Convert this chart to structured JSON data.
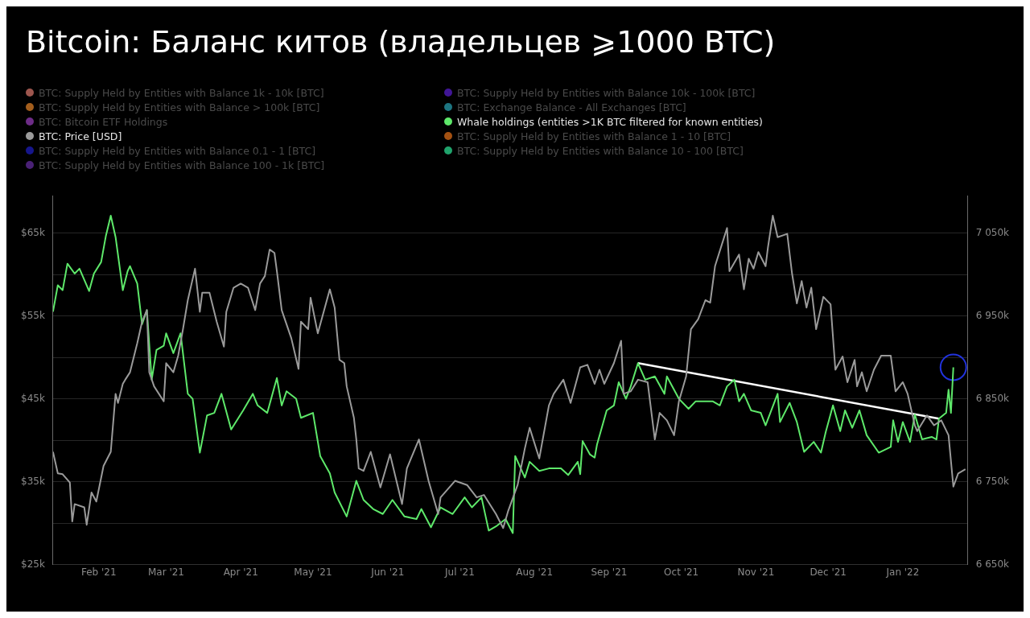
{
  "chart_data": {
    "type": "line",
    "title": "Bitcoin: Баланс китов (владельцев ⩾1000 BTC)",
    "xlim": [
      "2021-01-13",
      "2022-01-28"
    ],
    "xticks": [
      {
        "value": "2021-02-01",
        "label": "Feb '21"
      },
      {
        "value": "2021-03-01",
        "label": "Mar '21"
      },
      {
        "value": "2021-04-01",
        "label": "Apr '21"
      },
      {
        "value": "2021-05-01",
        "label": "May '21"
      },
      {
        "value": "2021-06-01",
        "label": "Jun '21"
      },
      {
        "value": "2021-07-01",
        "label": "Jul '21"
      },
      {
        "value": "2021-08-01",
        "label": "Aug '21"
      },
      {
        "value": "2021-09-01",
        "label": "Sep '21"
      },
      {
        "value": "2021-10-01",
        "label": "Oct '21"
      },
      {
        "value": "2021-11-01",
        "label": "Nov '21"
      },
      {
        "value": "2021-12-01",
        "label": "Dec '21"
      },
      {
        "value": "2022-01-01",
        "label": "Jan '22"
      }
    ],
    "ylim": [
      25000,
      69500
    ],
    "yticks": [
      {
        "value": 25000,
        "label": "$25k"
      },
      {
        "value": 30000,
        "label": null
      },
      {
        "value": 35000,
        "label": "$35k"
      },
      {
        "value": 40000,
        "label": null
      },
      {
        "value": 45000,
        "label": "$45k"
      },
      {
        "value": 50000,
        "label": null
      },
      {
        "value": 55000,
        "label": "$55k"
      },
      {
        "value": 60000,
        "label": null
      },
      {
        "value": 65000,
        "label": "$65k"
      }
    ],
    "y2lim": [
      6650000,
      7095000
    ],
    "y2ticks": [
      {
        "value": 6650000,
        "label": "6 650k"
      },
      {
        "value": 6700000,
        "label": null
      },
      {
        "value": 6750000,
        "label": "6 750k"
      },
      {
        "value": 6800000,
        "label": null
      },
      {
        "value": 6850000,
        "label": "6 850k"
      },
      {
        "value": 6900000,
        "label": null
      },
      {
        "value": 6950000,
        "label": "6 950k"
      },
      {
        "value": 7000000,
        "label": null
      },
      {
        "value": 7050000,
        "label": "7 050k"
      }
    ],
    "grid": "y",
    "legend": "top left",
    "marker": "none",
    "line_style": "solid",
    "series": [
      {
        "name": "BTC: Supply Held by Entities with Balance 1k - 10k [BTC]",
        "color": "#e07a6f"
      },
      {
        "name": "BTC: Supply Held by Entities with Balance > 100k [BTC]",
        "color": "#e8862a"
      },
      {
        "name": "BTC: Bitcoin ETF Holdings",
        "color": "#9b3fc0"
      },
      {
        "name": "BTC: Price [USD]",
        "color": "#9a9a9a",
        "x": [
          "2021-01-13",
          "2021-01-15",
          "2021-01-17",
          "2021-01-20",
          "2021-01-21",
          "2021-01-22",
          "2021-01-26",
          "2021-01-27",
          "2021-01-29",
          "2021-01-31",
          "2021-02-03",
          "2021-02-06",
          "2021-02-08",
          "2021-02-09",
          "2021-02-11",
          "2021-02-12",
          "2021-02-14",
          "2021-02-17",
          "2021-02-19",
          "2021-02-21",
          "2021-02-22",
          "2021-02-24",
          "2021-02-28",
          "2021-03-01",
          "2021-03-04",
          "2021-03-06",
          "2021-03-08",
          "2021-03-10",
          "2021-03-13",
          "2021-03-15",
          "2021-03-16",
          "2021-03-19",
          "2021-03-22",
          "2021-03-25",
          "2021-03-26",
          "2021-03-29",
          "2021-04-01",
          "2021-04-04",
          "2021-04-07",
          "2021-04-09",
          "2021-04-11",
          "2021-04-13",
          "2021-04-15",
          "2021-04-16",
          "2021-04-18",
          "2021-04-22",
          "2021-04-25",
          "2021-04-26",
          "2021-04-29",
          "2021-04-30",
          "2021-05-03",
          "2021-05-08",
          "2021-05-10",
          "2021-05-12",
          "2021-05-14",
          "2021-05-15",
          "2021-05-18",
          "2021-05-19",
          "2021-05-20",
          "2021-05-22",
          "2021-05-25",
          "2021-05-29",
          "2021-06-02",
          "2021-06-07",
          "2021-06-09",
          "2021-06-14",
          "2021-06-18",
          "2021-06-22",
          "2021-06-23",
          "2021-06-29",
          "2021-07-04",
          "2021-07-08",
          "2021-07-11",
          "2021-07-16",
          "2021-07-19",
          "2021-07-21",
          "2021-07-25",
          "2021-07-28",
          "2021-07-30",
          "2021-08-03",
          "2021-08-07",
          "2021-08-09",
          "2021-08-13",
          "2021-08-16",
          "2021-08-20",
          "2021-08-23",
          "2021-08-26",
          "2021-08-28",
          "2021-08-30",
          "2021-09-03",
          "2021-09-06",
          "2021-09-07",
          "2021-09-10",
          "2021-09-13",
          "2021-09-17",
          "2021-09-20",
          "2021-09-22",
          "2021-09-25",
          "2021-09-28",
          "2021-09-30",
          "2021-10-03",
          "2021-10-05",
          "2021-10-08",
          "2021-10-11",
          "2021-10-13",
          "2021-10-15",
          "2021-10-20",
          "2021-10-21",
          "2021-10-25",
          "2021-10-27",
          "2021-10-29",
          "2021-10-31",
          "2021-11-02",
          "2021-11-05",
          "2021-11-06",
          "2021-11-08",
          "2021-11-10",
          "2021-11-14",
          "2021-11-16",
          "2021-11-18",
          "2021-11-20",
          "2021-11-22",
          "2021-11-24",
          "2021-11-26",
          "2021-11-29",
          "2021-12-02",
          "2021-12-04",
          "2021-12-07",
          "2021-12-09",
          "2021-12-12",
          "2021-12-13",
          "2021-12-15",
          "2021-12-17",
          "2021-12-20",
          "2021-12-23",
          "2021-12-27",
          "2021-12-29",
          "2022-01-01",
          "2022-01-03",
          "2022-01-06",
          "2022-01-07",
          "2022-01-11",
          "2022-01-14",
          "2022-01-17",
          "2022-01-20",
          "2022-01-22",
          "2022-01-24",
          "2022-01-27"
        ],
        "values": [
          38600,
          36000,
          35900,
          34900,
          30200,
          32300,
          31900,
          29800,
          33700,
          32600,
          36900,
          38600,
          45600,
          44500,
          46800,
          47300,
          48200,
          51700,
          54300,
          55700,
          48200,
          46500,
          44700,
          49300,
          48200,
          50200,
          53400,
          56900,
          60700,
          55500,
          57800,
          57800,
          54300,
          51300,
          55500,
          58400,
          58900,
          58400,
          55700,
          58900,
          59800,
          63000,
          62600,
          60400,
          55700,
          52300,
          48600,
          54300,
          53400,
          57200,
          52900,
          58200,
          56000,
          49700,
          49300,
          46500,
          42700,
          40100,
          36600,
          36300,
          38600,
          34300,
          38300,
          32300,
          36600,
          40100,
          35100,
          31100,
          33100,
          35100,
          34600,
          33100,
          33400,
          31100,
          29400,
          31400,
          34600,
          39000,
          41500,
          37800,
          44200,
          45600,
          47300,
          44500,
          48800,
          49100,
          46800,
          48500,
          46800,
          49300,
          52000,
          45600,
          45900,
          47300,
          47000,
          40100,
          43300,
          42400,
          40600,
          44700,
          47700,
          53400,
          54600,
          56900,
          56600,
          61000,
          65600,
          60400,
          62400,
          58200,
          61900,
          60700,
          62700,
          61000,
          63300,
          67100,
          64500,
          64900,
          60100,
          56500,
          59200,
          56000,
          58400,
          53400,
          57300,
          56400,
          48500,
          50100,
          47000,
          49700,
          46500,
          48200,
          45900,
          48500,
          50200,
          50200,
          45900,
          47000,
          45600,
          41800,
          41100,
          43000,
          41800,
          42400,
          40600,
          34400,
          36000,
          36500
        ]
      },
      {
        "name": "BTC: Supply Held by Entities with Balance 0.1 - 1 [BTC]",
        "color": "#1f1fc8"
      },
      {
        "name": "BTC: Supply Held by Entities with Balance 100 - 1k [BTC]",
        "color": "#6a2fa8"
      },
      {
        "name": "BTC: Supply Held by Entities with Balance 10k - 100k [BTC]",
        "color": "#5b1fd6"
      },
      {
        "name": "BTC: Exchange Balance - All Exchanges [BTC]",
        "color": "#2aa7b8"
      },
      {
        "name": "Whale holdings (entities >1K BTC filtered for known entities)",
        "color": "#5ee86a",
        "axis": "y2",
        "x": [
          "2021-01-13",
          "2021-01-15",
          "2021-01-17",
          "2021-01-19",
          "2021-01-22",
          "2021-01-24",
          "2021-01-28",
          "2021-01-30",
          "2021-02-02",
          "2021-02-04",
          "2021-02-06",
          "2021-02-08",
          "2021-02-11",
          "2021-02-13",
          "2021-02-14",
          "2021-02-17",
          "2021-02-19",
          "2021-02-21",
          "2021-02-23",
          "2021-02-25",
          "2021-02-28",
          "2021-03-01",
          "2021-03-04",
          "2021-03-07",
          "2021-03-10",
          "2021-03-12",
          "2021-03-15",
          "2021-03-18",
          "2021-03-21",
          "2021-03-24",
          "2021-03-28",
          "2021-04-02",
          "2021-04-06",
          "2021-04-08",
          "2021-04-12",
          "2021-04-16",
          "2021-04-18",
          "2021-04-20",
          "2021-04-24",
          "2021-04-26",
          "2021-05-01",
          "2021-05-04",
          "2021-05-08",
          "2021-05-10",
          "2021-05-15",
          "2021-05-19",
          "2021-05-22",
          "2021-05-26",
          "2021-05-30",
          "2021-06-03",
          "2021-06-08",
          "2021-06-13",
          "2021-06-15",
          "2021-06-19",
          "2021-06-23",
          "2021-06-28",
          "2021-07-03",
          "2021-07-06",
          "2021-07-10",
          "2021-07-13",
          "2021-07-16",
          "2021-07-20",
          "2021-07-23",
          "2021-07-24",
          "2021-07-28",
          "2021-07-30",
          "2021-08-03",
          "2021-08-07",
          "2021-08-12",
          "2021-08-15",
          "2021-08-19",
          "2021-08-20",
          "2021-08-21",
          "2021-08-24",
          "2021-08-26",
          "2021-08-27",
          "2021-08-31",
          "2021-09-03",
          "2021-09-05",
          "2021-09-08",
          "2021-09-10",
          "2021-09-13",
          "2021-09-16",
          "2021-09-20",
          "2021-09-24",
          "2021-09-25",
          "2021-09-30",
          "2021-10-04",
          "2021-10-07",
          "2021-10-14",
          "2021-10-17",
          "2021-10-20",
          "2021-10-23",
          "2021-10-25",
          "2021-10-27",
          "2021-10-30",
          "2021-11-03",
          "2021-11-05",
          "2021-11-10",
          "2021-11-11",
          "2021-11-15",
          "2021-11-18",
          "2021-11-21",
          "2021-11-25",
          "2021-11-28",
          "2021-11-30",
          "2021-12-03",
          "2021-12-06",
          "2021-12-08",
          "2021-12-11",
          "2021-12-14",
          "2021-12-17",
          "2021-12-22",
          "2021-12-27",
          "2021-12-28",
          "2021-12-30",
          "2022-01-01",
          "2022-01-04",
          "2022-01-06",
          "2022-01-09",
          "2022-01-13",
          "2022-01-15",
          "2022-01-16",
          "2022-01-19",
          "2022-01-20",
          "2022-01-21",
          "2022-01-22"
        ],
        "values": [
          6955000,
          6987000,
          6981000,
          7013000,
          7001000,
          7007000,
          6980000,
          7001000,
          7015000,
          7047000,
          7071000,
          7045000,
          6981000,
          7004000,
          7010000,
          6989000,
          6940000,
          6957000,
          6873000,
          6909000,
          6914000,
          6929000,
          6905000,
          6929000,
          6856000,
          6850000,
          6785000,
          6830000,
          6833000,
          6856000,
          6813000,
          6836000,
          6856000,
          6842000,
          6833000,
          6875000,
          6842000,
          6859000,
          6850000,
          6827000,
          6833000,
          6781000,
          6760000,
          6737000,
          6708000,
          6751000,
          6728000,
          6717000,
          6711000,
          6728000,
          6708000,
          6705000,
          6717000,
          6695000,
          6719000,
          6711000,
          6731000,
          6719000,
          6731000,
          6691000,
          6696000,
          6705000,
          6688000,
          6781000,
          6755000,
          6774000,
          6763000,
          6766000,
          6766000,
          6758000,
          6774000,
          6759000,
          6799000,
          6783000,
          6779000,
          6795000,
          6836000,
          6842000,
          6870000,
          6850000,
          6865000,
          6893000,
          6873000,
          6877000,
          6856000,
          6877000,
          6850000,
          6838000,
          6847000,
          6847000,
          6842000,
          6865000,
          6873000,
          6847000,
          6856000,
          6836000,
          6833000,
          6818000,
          6856000,
          6822000,
          6845000,
          6822000,
          6786000,
          6798000,
          6785000,
          6810000,
          6842000,
          6811000,
          6836000,
          6815000,
          6836000,
          6806000,
          6785000,
          6792000,
          6824000,
          6798000,
          6822000,
          6798000,
          6831000,
          6801000,
          6804000,
          6801000,
          6826000,
          6833000,
          6861000,
          6833000,
          6888000
        ]
      },
      {
        "name": "BTC: Supply Held by Entities with Balance 1 - 10 [BTC]",
        "color": "#e8731a"
      },
      {
        "name": "BTC: Supply Held by Entities with Balance 10 - 100 [BTC]",
        "color": "#2ee89a"
      },
      {
        "type": "line",
        "color": "#ffffff",
        "axis": "y2",
        "x": [
          "2021-09-13",
          "2022-01-16"
        ],
        "values": [
          6893000,
          6826000
        ]
      }
    ]
  }
}
